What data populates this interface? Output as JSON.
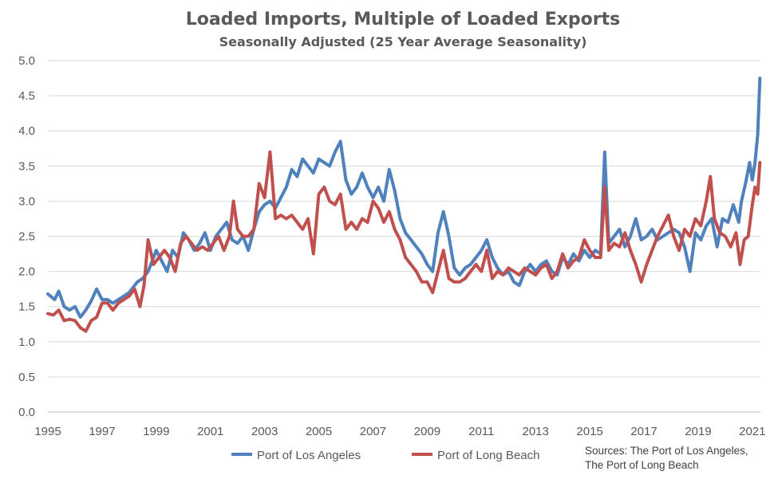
{
  "chart_data": {
    "type": "line",
    "title": "Loaded Imports, Multiple of Loaded Exports",
    "subtitle": "Seasonally Adjusted (25 Year Average Seasonality)",
    "xlabel": "",
    "ylabel": "",
    "xlim": [
      1995,
      2021.3
    ],
    "ylim": [
      0,
      5
    ],
    "x_ticks": [
      "1995",
      "1997",
      "1999",
      "2001",
      "2003",
      "2005",
      "2007",
      "2009",
      "2011",
      "2013",
      "2015",
      "2017",
      "2019",
      "2021"
    ],
    "y_ticks": [
      "0.0",
      "0.5",
      "1.0",
      "1.5",
      "2.0",
      "2.5",
      "3.0",
      "3.5",
      "4.0",
      "4.5",
      "5.0"
    ],
    "grid": "horizontal",
    "legend_position": "bottom",
    "source": "Sources: The Port of Los Angeles,\nThe Port of Long Beach",
    "series": [
      {
        "name": "Port of Los Angeles",
        "color": "#4f81bd",
        "points": [
          [
            1995.0,
            1.68
          ],
          [
            1995.25,
            1.6
          ],
          [
            1995.4,
            1.72
          ],
          [
            1995.6,
            1.5
          ],
          [
            1995.8,
            1.45
          ],
          [
            1996.0,
            1.5
          ],
          [
            1996.2,
            1.35
          ],
          [
            1996.4,
            1.45
          ],
          [
            1996.6,
            1.58
          ],
          [
            1996.8,
            1.75
          ],
          [
            1997.0,
            1.6
          ],
          [
            1997.2,
            1.6
          ],
          [
            1997.4,
            1.55
          ],
          [
            1997.6,
            1.6
          ],
          [
            1997.8,
            1.65
          ],
          [
            1998.0,
            1.7
          ],
          [
            1998.3,
            1.85
          ],
          [
            1998.5,
            1.9
          ],
          [
            1998.7,
            2.0
          ],
          [
            1999.0,
            2.3
          ],
          [
            1999.2,
            2.15
          ],
          [
            1999.4,
            2.0
          ],
          [
            1999.6,
            2.3
          ],
          [
            1999.8,
            2.2
          ],
          [
            2000.0,
            2.55
          ],
          [
            2000.2,
            2.45
          ],
          [
            2000.4,
            2.3
          ],
          [
            2000.6,
            2.4
          ],
          [
            2000.8,
            2.55
          ],
          [
            2001.0,
            2.3
          ],
          [
            2001.2,
            2.5
          ],
          [
            2001.4,
            2.6
          ],
          [
            2001.6,
            2.7
          ],
          [
            2001.8,
            2.45
          ],
          [
            2002.0,
            2.4
          ],
          [
            2002.2,
            2.5
          ],
          [
            2002.4,
            2.3
          ],
          [
            2002.6,
            2.6
          ],
          [
            2002.8,
            2.85
          ],
          [
            2003.0,
            2.95
          ],
          [
            2003.2,
            3.0
          ],
          [
            2003.4,
            2.9
          ],
          [
            2003.6,
            3.05
          ],
          [
            2003.8,
            3.2
          ],
          [
            2004.0,
            3.45
          ],
          [
            2004.2,
            3.35
          ],
          [
            2004.4,
            3.6
          ],
          [
            2004.6,
            3.5
          ],
          [
            2004.8,
            3.4
          ],
          [
            2005.0,
            3.6
          ],
          [
            2005.2,
            3.55
          ],
          [
            2005.4,
            3.5
          ],
          [
            2005.6,
            3.7
          ],
          [
            2005.8,
            3.85
          ],
          [
            2006.0,
            3.3
          ],
          [
            2006.2,
            3.1
          ],
          [
            2006.4,
            3.2
          ],
          [
            2006.6,
            3.4
          ],
          [
            2006.8,
            3.2
          ],
          [
            2007.0,
            3.05
          ],
          [
            2007.2,
            3.2
          ],
          [
            2007.4,
            3.0
          ],
          [
            2007.6,
            3.45
          ],
          [
            2007.8,
            3.15
          ],
          [
            2008.0,
            2.75
          ],
          [
            2008.2,
            2.55
          ],
          [
            2008.4,
            2.45
          ],
          [
            2008.6,
            2.35
          ],
          [
            2008.8,
            2.25
          ],
          [
            2009.0,
            2.1
          ],
          [
            2009.2,
            2.0
          ],
          [
            2009.4,
            2.55
          ],
          [
            2009.6,
            2.85
          ],
          [
            2009.8,
            2.5
          ],
          [
            2010.0,
            2.05
          ],
          [
            2010.2,
            1.95
          ],
          [
            2010.4,
            2.05
          ],
          [
            2010.6,
            2.1
          ],
          [
            2010.8,
            2.2
          ],
          [
            2011.0,
            2.3
          ],
          [
            2011.2,
            2.45
          ],
          [
            2011.4,
            2.2
          ],
          [
            2011.6,
            2.05
          ],
          [
            2011.8,
            1.95
          ],
          [
            2012.0,
            2.0
          ],
          [
            2012.2,
            1.85
          ],
          [
            2012.4,
            1.8
          ],
          [
            2012.6,
            2.0
          ],
          [
            2012.8,
            2.1
          ],
          [
            2013.0,
            2.0
          ],
          [
            2013.2,
            2.1
          ],
          [
            2013.4,
            2.15
          ],
          [
            2013.6,
            2.0
          ],
          [
            2013.8,
            1.95
          ],
          [
            2014.0,
            2.2
          ],
          [
            2014.2,
            2.1
          ],
          [
            2014.4,
            2.25
          ],
          [
            2014.6,
            2.15
          ],
          [
            2014.8,
            2.3
          ],
          [
            2015.0,
            2.2
          ],
          [
            2015.2,
            2.3
          ],
          [
            2015.4,
            2.25
          ],
          [
            2015.55,
            3.7
          ],
          [
            2015.7,
            2.4
          ],
          [
            2015.9,
            2.5
          ],
          [
            2016.1,
            2.6
          ],
          [
            2016.3,
            2.35
          ],
          [
            2016.5,
            2.5
          ],
          [
            2016.7,
            2.75
          ],
          [
            2016.9,
            2.45
          ],
          [
            2017.1,
            2.5
          ],
          [
            2017.3,
            2.6
          ],
          [
            2017.5,
            2.45
          ],
          [
            2017.7,
            2.5
          ],
          [
            2017.9,
            2.55
          ],
          [
            2018.1,
            2.6
          ],
          [
            2018.3,
            2.55
          ],
          [
            2018.5,
            2.35
          ],
          [
            2018.7,
            2.0
          ],
          [
            2018.9,
            2.55
          ],
          [
            2019.1,
            2.45
          ],
          [
            2019.3,
            2.65
          ],
          [
            2019.5,
            2.75
          ],
          [
            2019.7,
            2.35
          ],
          [
            2019.9,
            2.75
          ],
          [
            2020.1,
            2.7
          ],
          [
            2020.3,
            2.95
          ],
          [
            2020.5,
            2.7
          ],
          [
            2020.6,
            3.0
          ],
          [
            2020.75,
            3.25
          ],
          [
            2020.9,
            3.55
          ],
          [
            2021.0,
            3.3
          ],
          [
            2021.1,
            3.55
          ],
          [
            2021.2,
            3.95
          ],
          [
            2021.28,
            4.75
          ]
        ]
      },
      {
        "name": "Port of Long Beach",
        "color": "#c0504d",
        "points": [
          [
            1995.0,
            1.4
          ],
          [
            1995.2,
            1.38
          ],
          [
            1995.4,
            1.45
          ],
          [
            1995.6,
            1.3
          ],
          [
            1995.8,
            1.32
          ],
          [
            1996.0,
            1.3
          ],
          [
            1996.2,
            1.2
          ],
          [
            1996.4,
            1.15
          ],
          [
            1996.6,
            1.3
          ],
          [
            1996.8,
            1.35
          ],
          [
            1997.0,
            1.55
          ],
          [
            1997.2,
            1.55
          ],
          [
            1997.4,
            1.45
          ],
          [
            1997.6,
            1.55
          ],
          [
            1997.8,
            1.6
          ],
          [
            1998.0,
            1.65
          ],
          [
            1998.2,
            1.75
          ],
          [
            1998.4,
            1.5
          ],
          [
            1998.55,
            1.8
          ],
          [
            1998.7,
            2.45
          ],
          [
            1998.9,
            2.1
          ],
          [
            1999.1,
            2.2
          ],
          [
            1999.3,
            2.3
          ],
          [
            1999.5,
            2.2
          ],
          [
            1999.7,
            2.0
          ],
          [
            1999.9,
            2.4
          ],
          [
            2000.1,
            2.5
          ],
          [
            2000.3,
            2.4
          ],
          [
            2000.5,
            2.3
          ],
          [
            2000.7,
            2.35
          ],
          [
            2000.9,
            2.3
          ],
          [
            2001.1,
            2.4
          ],
          [
            2001.3,
            2.5
          ],
          [
            2001.5,
            2.3
          ],
          [
            2001.7,
            2.5
          ],
          [
            2001.85,
            3.0
          ],
          [
            2002.0,
            2.6
          ],
          [
            2002.2,
            2.5
          ],
          [
            2002.4,
            2.5
          ],
          [
            2002.6,
            2.6
          ],
          [
            2002.8,
            3.25
          ],
          [
            2003.0,
            3.05
          ],
          [
            2003.2,
            3.7
          ],
          [
            2003.4,
            2.75
          ],
          [
            2003.6,
            2.8
          ],
          [
            2003.8,
            2.75
          ],
          [
            2004.0,
            2.8
          ],
          [
            2004.2,
            2.7
          ],
          [
            2004.4,
            2.6
          ],
          [
            2004.6,
            2.75
          ],
          [
            2004.8,
            2.25
          ],
          [
            2005.0,
            3.1
          ],
          [
            2005.2,
            3.2
          ],
          [
            2005.4,
            3.0
          ],
          [
            2005.6,
            2.95
          ],
          [
            2005.8,
            3.1
          ],
          [
            2006.0,
            2.6
          ],
          [
            2006.2,
            2.7
          ],
          [
            2006.4,
            2.6
          ],
          [
            2006.6,
            2.75
          ],
          [
            2006.8,
            2.7
          ],
          [
            2007.0,
            3.0
          ],
          [
            2007.2,
            2.9
          ],
          [
            2007.4,
            2.7
          ],
          [
            2007.6,
            2.85
          ],
          [
            2007.8,
            2.6
          ],
          [
            2008.0,
            2.45
          ],
          [
            2008.2,
            2.2
          ],
          [
            2008.4,
            2.1
          ],
          [
            2008.6,
            2.0
          ],
          [
            2008.8,
            1.85
          ],
          [
            2009.0,
            1.85
          ],
          [
            2009.2,
            1.7
          ],
          [
            2009.4,
            2.0
          ],
          [
            2009.6,
            2.3
          ],
          [
            2009.8,
            1.9
          ],
          [
            2010.0,
            1.85
          ],
          [
            2010.2,
            1.85
          ],
          [
            2010.4,
            1.9
          ],
          [
            2010.6,
            2.0
          ],
          [
            2010.8,
            2.1
          ],
          [
            2011.0,
            2.0
          ],
          [
            2011.2,
            2.3
          ],
          [
            2011.4,
            1.9
          ],
          [
            2011.6,
            2.0
          ],
          [
            2011.8,
            1.95
          ],
          [
            2012.0,
            2.05
          ],
          [
            2012.2,
            2.0
          ],
          [
            2012.4,
            1.95
          ],
          [
            2012.6,
            2.05
          ],
          [
            2012.8,
            2.0
          ],
          [
            2013.0,
            1.95
          ],
          [
            2013.2,
            2.05
          ],
          [
            2013.4,
            2.1
          ],
          [
            2013.6,
            1.9
          ],
          [
            2013.8,
            2.0
          ],
          [
            2014.0,
            2.25
          ],
          [
            2014.2,
            2.05
          ],
          [
            2014.4,
            2.15
          ],
          [
            2014.6,
            2.2
          ],
          [
            2014.8,
            2.45
          ],
          [
            2015.0,
            2.3
          ],
          [
            2015.2,
            2.2
          ],
          [
            2015.4,
            2.2
          ],
          [
            2015.55,
            3.2
          ],
          [
            2015.7,
            2.3
          ],
          [
            2015.9,
            2.4
          ],
          [
            2016.1,
            2.35
          ],
          [
            2016.3,
            2.55
          ],
          [
            2016.5,
            2.3
          ],
          [
            2016.7,
            2.1
          ],
          [
            2016.9,
            1.85
          ],
          [
            2017.1,
            2.1
          ],
          [
            2017.3,
            2.3
          ],
          [
            2017.5,
            2.5
          ],
          [
            2017.7,
            2.65
          ],
          [
            2017.9,
            2.8
          ],
          [
            2018.1,
            2.5
          ],
          [
            2018.3,
            2.3
          ],
          [
            2018.5,
            2.6
          ],
          [
            2018.7,
            2.5
          ],
          [
            2018.9,
            2.75
          ],
          [
            2019.1,
            2.65
          ],
          [
            2019.3,
            3.0
          ],
          [
            2019.45,
            3.35
          ],
          [
            2019.6,
            2.75
          ],
          [
            2019.8,
            2.55
          ],
          [
            2020.0,
            2.5
          ],
          [
            2020.2,
            2.35
          ],
          [
            2020.4,
            2.55
          ],
          [
            2020.55,
            2.1
          ],
          [
            2020.7,
            2.45
          ],
          [
            2020.85,
            2.5
          ],
          [
            2021.0,
            2.95
          ],
          [
            2021.1,
            3.2
          ],
          [
            2021.2,
            3.1
          ],
          [
            2021.28,
            3.55
          ]
        ]
      }
    ]
  }
}
